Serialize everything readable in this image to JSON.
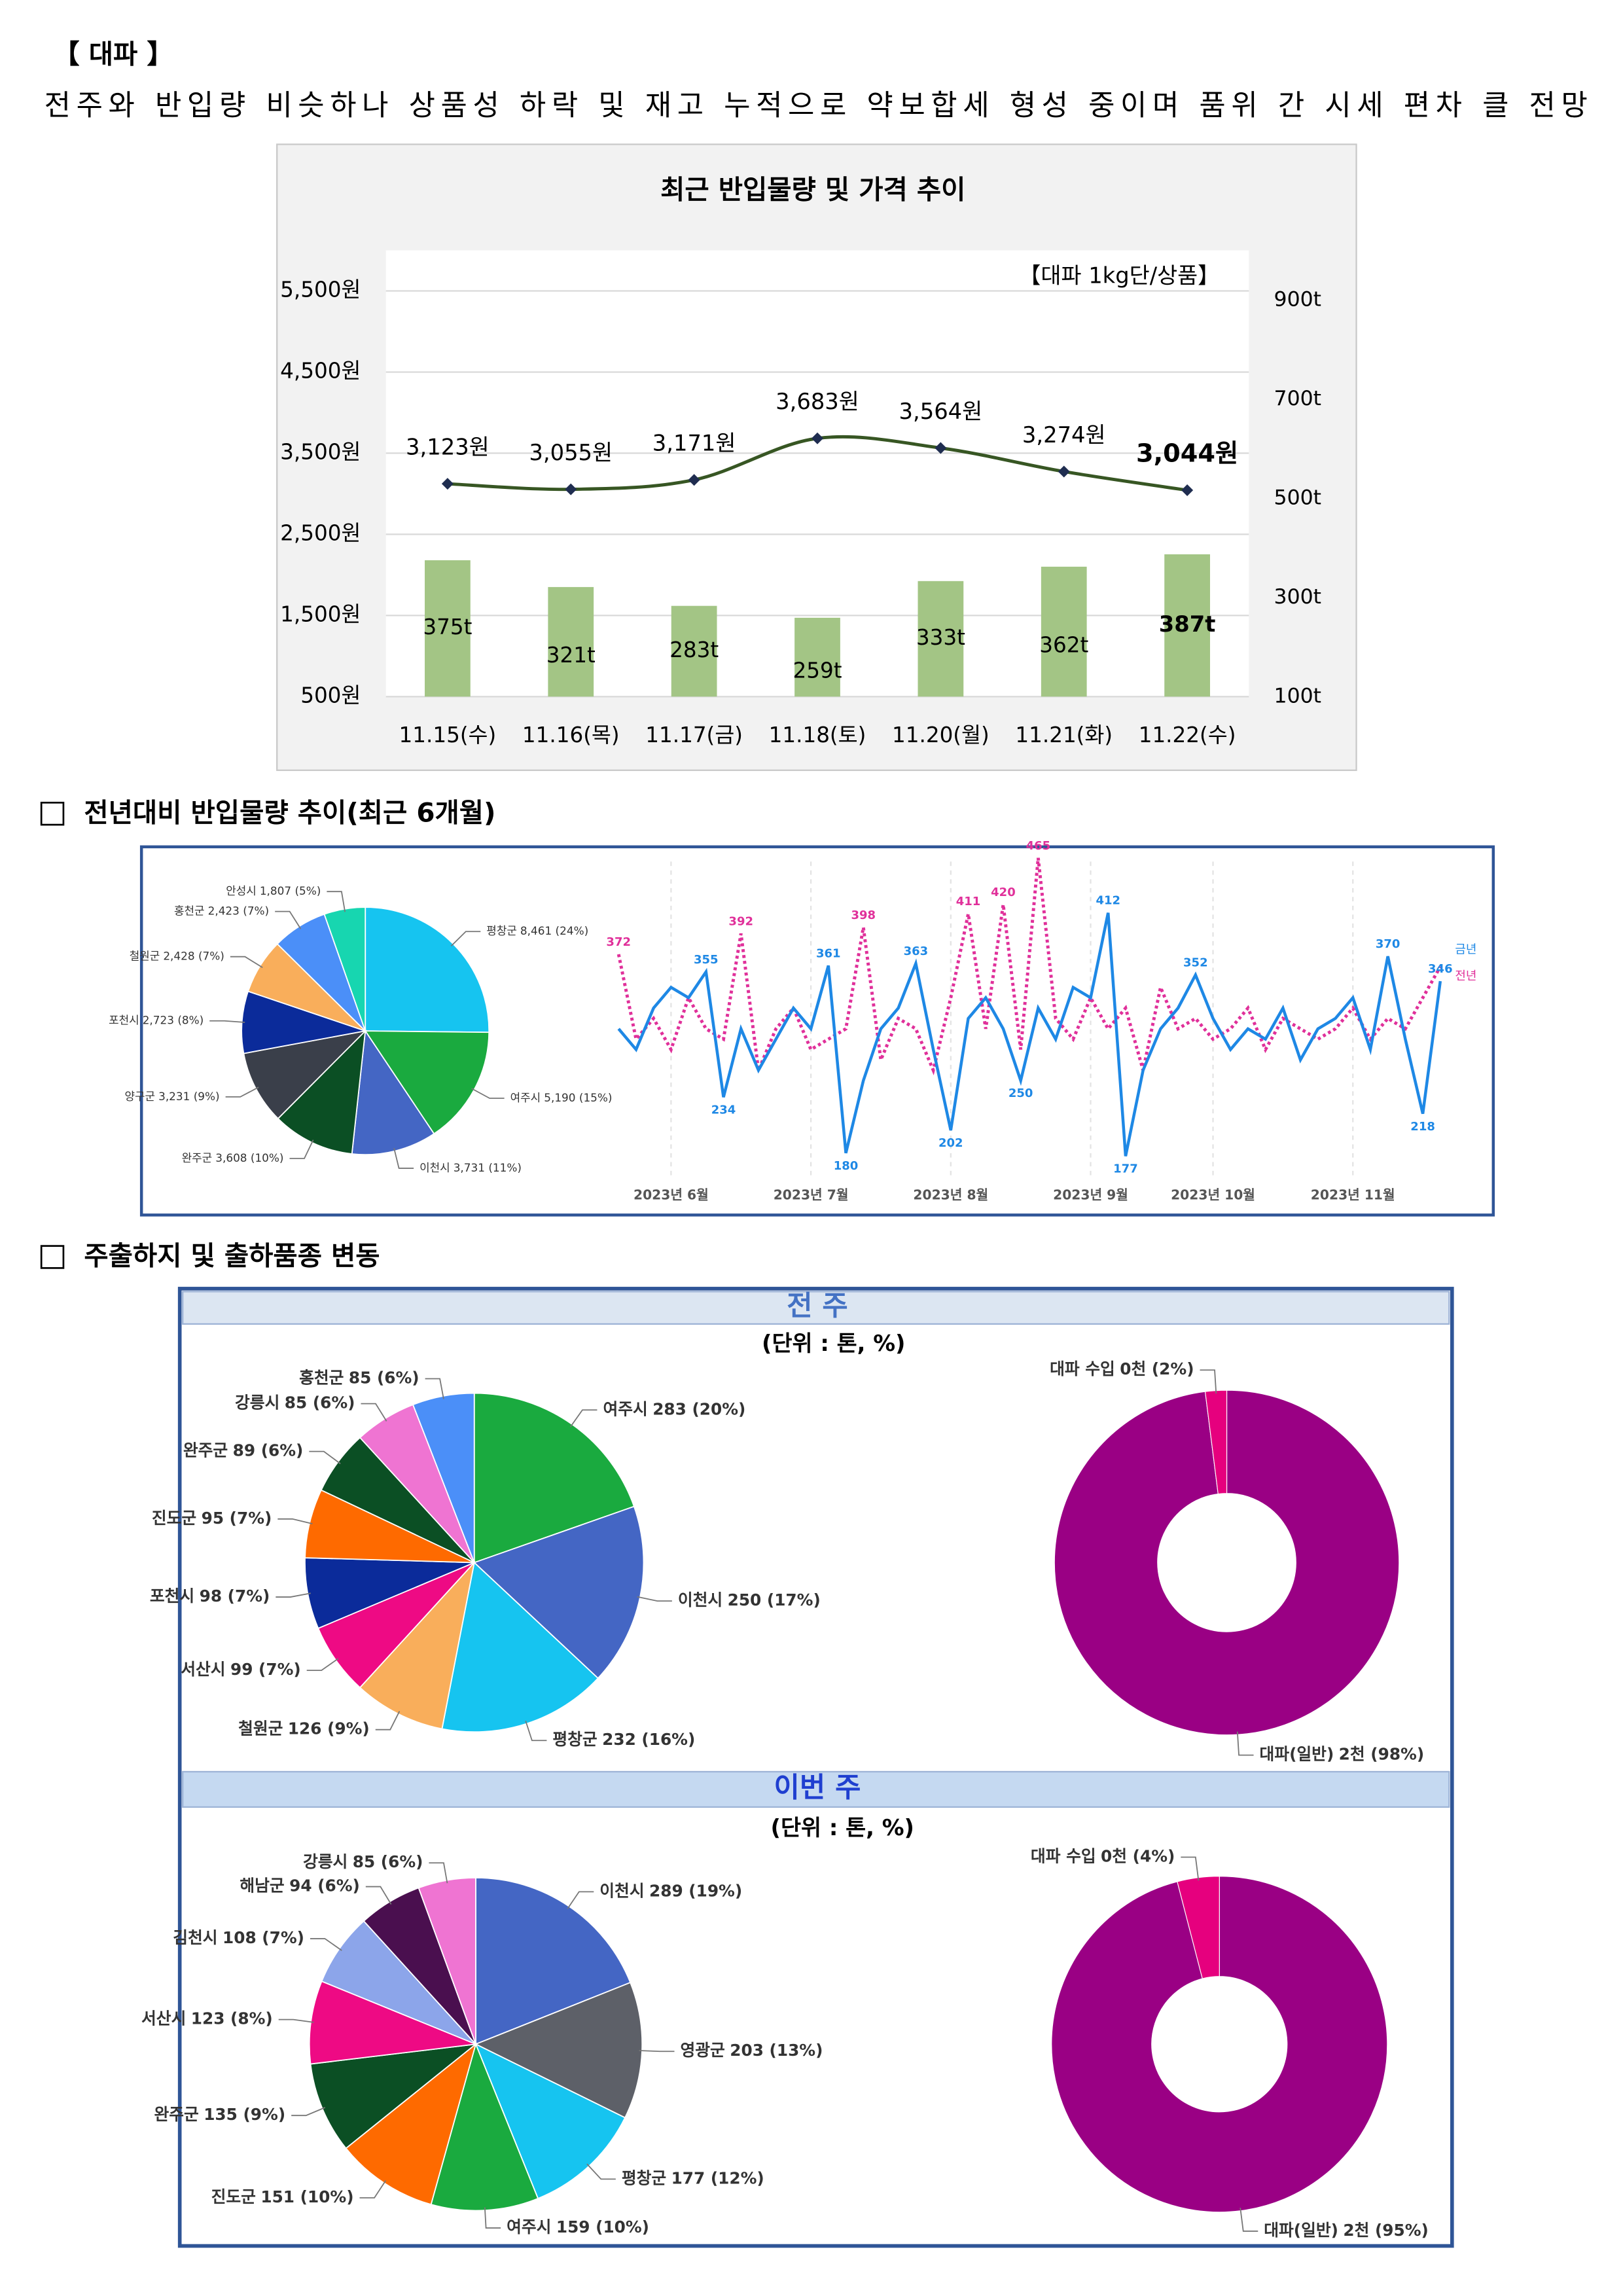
{
  "header": {
    "title": "【 대파 】",
    "summary": "전주와 반입량 비슷하나 상품성 하락 및 재고 누적으로 약보합세 형성 중이며 품위 간 시세 편차 클 전망"
  },
  "sections": [
    "전년대비 반입물량 추이(최근 6개월)",
    "주출하지 및 출하품종 변동"
  ],
  "panels": [
    {
      "title": "전 주",
      "unit": "(단위 : 톤, %)"
    },
    {
      "title": "이번 주",
      "unit": "(단위 : 톤, %)"
    }
  ],
  "chart_data": [
    {
      "type": "combo",
      "title": "최근 반입물량 및 가격 추이",
      "note": "【대파 1kg단/상품】",
      "categories": [
        "11.15(수)",
        "11.16(목)",
        "11.17(금)",
        "11.18(토)",
        "11.20(월)",
        "11.21(화)",
        "11.22(수)"
      ],
      "series": [
        {
          "type": "bar",
          "axis": "y2",
          "color": "#a3c585",
          "values": [
            375,
            321,
            283,
            259,
            333,
            362,
            387
          ],
          "value_labels": [
            "375t",
            "321t",
            "283t",
            "259t",
            "333t",
            "362t",
            "387t"
          ]
        },
        {
          "type": "line",
          "color": "#375623",
          "marker_color": "#1f2d50",
          "values": [
            3123,
            3055,
            3171,
            3683,
            3564,
            3274,
            3044
          ],
          "value_labels": [
            "3,123원",
            "3,055원",
            "3,171원",
            "3,683원",
            "3,564원",
            "3,274원",
            "3,044원"
          ]
        }
      ],
      "ylim": [
        500,
        6000
      ],
      "yticks": [
        {
          "value": 500,
          "label": "500원"
        },
        {
          "value": 1500,
          "label": "1,500원"
        },
        {
          "value": 2500,
          "label": "2,500원"
        },
        {
          "value": 3500,
          "label": "3,500원"
        },
        {
          "value": 4500,
          "label": "4,500원"
        },
        {
          "value": 5500,
          "label": "5,500원"
        }
      ],
      "y2lim": [
        100,
        1000
      ],
      "y2ticks": [
        {
          "value": 100,
          "label": "100t"
        },
        {
          "value": 300,
          "label": "300t"
        },
        {
          "value": 500,
          "label": "500t"
        },
        {
          "value": 700,
          "label": "700t"
        },
        {
          "value": 900,
          "label": "900t"
        }
      ],
      "grid": true
    },
    {
      "type": "pie",
      "categories": [
        "평창군",
        "여주시",
        "이천시",
        "완주군",
        "양구군",
        "포천시",
        "철원군",
        "홍천군",
        "안성시"
      ],
      "values": [
        8461,
        5190,
        3731,
        3608,
        3231,
        2723,
        2428,
        2423,
        1807
      ],
      "value_labels": [
        "8,461 (24%)",
        "5,190 (15%)",
        "3,731 (11%)",
        "3,608 (10%)",
        "3,231 (9%)",
        "2,723 (8%)",
        "2,428 (7%)",
        "2,423 (7%)",
        "1,807 (5%)"
      ],
      "colors": [
        "#16c4f0",
        "#1aaa3f",
        "#4466c4",
        "#0b4f24",
        "#3a3f4a",
        "#0b2b9a",
        "#f9ae5b",
        "#4b8ff8",
        "#17d6b0"
      ]
    },
    {
      "type": "line",
      "categories": [
        null,
        null,
        null,
        "2023년 6월",
        null,
        null,
        null,
        null,
        null,
        null,
        null,
        "2023년 7월",
        null,
        null,
        null,
        null,
        null,
        null,
        null,
        "2023년 8월",
        null,
        null,
        null,
        null,
        null,
        null,
        null,
        "2023년 9월",
        null,
        null,
        null,
        null,
        null,
        null,
        "2023년 10월",
        null,
        null,
        null,
        null,
        null,
        null,
        null,
        "2023년 11월",
        null,
        null,
        null,
        null,
        null
      ],
      "series": [
        {
          "name": "금년",
          "color": "#1e88e5",
          "line_style": "solid",
          "values": [
            300,
            280,
            320,
            340,
            330,
            355,
            234,
            300,
            260,
            290,
            320,
            300,
            361,
            180,
            250,
            300,
            320,
            363,
            280,
            202,
            310,
            330,
            300,
            250,
            320,
            290,
            340,
            330,
            412,
            177,
            260,
            300,
            320,
            352,
            310,
            280,
            300,
            290,
            320,
            270,
            300,
            310,
            330,
            280,
            370,
            290,
            218,
            346
          ],
          "value_labels": [
            null,
            null,
            null,
            null,
            null,
            "355",
            "234",
            null,
            null,
            null,
            null,
            null,
            "361",
            "180",
            null,
            null,
            null,
            "363",
            null,
            "202",
            null,
            null,
            null,
            "250",
            null,
            null,
            null,
            null,
            "412",
            "177",
            null,
            null,
            null,
            "352",
            null,
            null,
            null,
            null,
            null,
            null,
            null,
            null,
            null,
            null,
            "370",
            null,
            "218",
            "346"
          ]
        },
        {
          "name": "전년",
          "color": "#e0309a",
          "line_style": "dotted",
          "values": [
            372,
            290,
            310,
            280,
            330,
            300,
            290,
            392,
            260,
            300,
            320,
            280,
            290,
            300,
            398,
            270,
            310,
            300,
            260,
            330,
            411,
            300,
            420,
            280,
            465,
            310,
            290,
            330,
            300,
            320,
            260,
            340,
            300,
            310,
            290,
            300,
            320,
            280,
            310,
            300,
            290,
            300,
            320,
            290,
            310,
            300,
            330,
            360
          ],
          "value_labels": [
            "372",
            null,
            null,
            null,
            null,
            null,
            null,
            "392",
            null,
            null,
            null,
            null,
            null,
            null,
            "398",
            null,
            null,
            null,
            null,
            null,
            "411",
            null,
            "420",
            null,
            "465",
            null,
            null,
            null,
            null,
            null,
            null,
            null,
            null,
            null,
            null,
            null,
            null,
            null,
            null,
            null,
            null,
            null,
            null,
            null,
            null,
            null,
            null,
            null
          ]
        }
      ],
      "ylim": [
        160,
        480
      ],
      "grid": true
    },
    {
      "type": "pie",
      "categories": [
        "여주시",
        "이천시",
        "평창군",
        "철원군",
        "서산시",
        "포천시",
        "진도군",
        "완주군",
        "강릉시",
        "홍천군"
      ],
      "values": [
        283,
        250,
        232,
        126,
        99,
        98,
        95,
        89,
        85,
        85
      ],
      "value_labels": [
        "283 (20%)",
        "250 (17%)",
        "232 (16%)",
        "126 (9%)",
        "99 (7%)",
        "98 (7%)",
        "95 (7%)",
        "89 (6%)",
        "85 (6%)",
        "85 (6%)"
      ],
      "colors": [
        "#1aaa3f",
        "#4466c4",
        "#16c4f0",
        "#f9ae5b",
        "#ee0a84",
        "#0b2b9a",
        "#fe6a00",
        "#0b4f24",
        "#ef74d2",
        "#4b8ff8"
      ]
    },
    {
      "type": "donut",
      "categories": [
        "대파(일반)",
        "대파 수입"
      ],
      "values": [
        98,
        2
      ],
      "value_labels": [
        "2천 (98%)",
        "0천 (2%)"
      ],
      "colors": [
        "#9a0084",
        "#e6007e"
      ]
    },
    {
      "type": "pie",
      "categories": [
        "이천시",
        "영광군",
        "평창군",
        "여주시",
        "진도군",
        "완주군",
        "서산시",
        "김천시",
        "해남군",
        "강릉시"
      ],
      "values": [
        289,
        203,
        177,
        159,
        151,
        135,
        123,
        108,
        94,
        85
      ],
      "value_labels": [
        "289 (19%)",
        "203 (13%)",
        "177 (12%)",
        "159 (10%)",
        "151 (10%)",
        "135 (9%)",
        "123 (8%)",
        "108 (7%)",
        "94 (6%)",
        "85 (6%)"
      ],
      "colors": [
        "#4466c4",
        "#5d6068",
        "#16c4f0",
        "#1aaa3f",
        "#fe6a00",
        "#0b4f24",
        "#ee0a84",
        "#8ca5ea",
        "#4a0f4f",
        "#ef74d2"
      ]
    },
    {
      "type": "donut",
      "categories": [
        "대파(일반)",
        "대파 수입"
      ],
      "values": [
        95,
        4
      ],
      "value_labels": [
        "2천 (95%)",
        "0천 (4%)"
      ],
      "colors": [
        "#9a0084",
        "#e6007e"
      ]
    }
  ]
}
